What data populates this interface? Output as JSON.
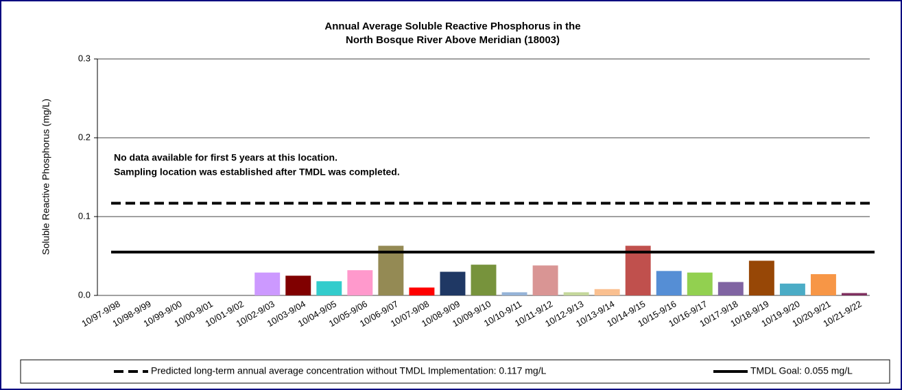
{
  "chart_data": {
    "type": "bar",
    "title": [
      "Annual Average Soluble Reactive Phosphorus in the",
      "North Bosque River Above Meridian (18003)"
    ],
    "y_label": "Soluble Reactive Phosphorus (mg/L)",
    "annotation": [
      "No data available for first 5 years at this location.",
      "Sampling location was established after TMDL was completed."
    ],
    "categories": [
      "10/97-9/98",
      "10/98-9/99",
      "10/99-9/00",
      "10/00-9/01",
      "10/01-9/02",
      "10/02-9/03",
      "10/03-9/04",
      "10/04-9/05",
      "10/05-9/06",
      "10/06-9/07",
      "10/07-9/08",
      "10/08-9/09",
      "10/09-9/10",
      "10/10-9/11",
      "10/11-9/12",
      "10/12-9/13",
      "10/13-9/14",
      "10/14-9/15",
      "10/15-9/16",
      "10/16-9/17",
      "10/17-9/18",
      "10/18-9/19",
      "10/19-9/20",
      "10/20-9/21",
      "10/21-9/22"
    ],
    "values": [
      null,
      null,
      null,
      null,
      null,
      0.029,
      0.025,
      0.018,
      0.032,
      0.063,
      0.01,
      0.03,
      0.039,
      0.004,
      0.038,
      0.004,
      0.008,
      0.063,
      0.031,
      0.029,
      0.017,
      0.044,
      0.015,
      0.027,
      0.003
    ],
    "colors": [
      null,
      null,
      null,
      null,
      null,
      "#cc99ff",
      "#800000",
      "#33cccc",
      "#ff99cc",
      "#948a54",
      "#ff0000",
      "#1f3864",
      "#77933c",
      "#95b3d7",
      "#d99594",
      "#c4d79b",
      "#fac090",
      "#c0504d",
      "#558ed5",
      "#92d050",
      "#8064a2",
      "#974706",
      "#4bacc6",
      "#f79646",
      "#7f2f5f"
    ],
    "reference_lines": [
      {
        "name": "Predicted long-term annual average concentration without TMDL Implementation: 0.117 mg/L",
        "value": 0.117,
        "style": "dashed",
        "color": "#000000"
      },
      {
        "name": "TMDL Goal: 0.055 mg/L",
        "value": 0.055,
        "style": "solid",
        "color": "#000000"
      }
    ],
    "ylim": [
      0,
      0.3
    ],
    "yticks": [
      {
        "value": 0,
        "label": "0.0"
      },
      0.1,
      0.2,
      0.3
    ],
    "grid": true
  }
}
